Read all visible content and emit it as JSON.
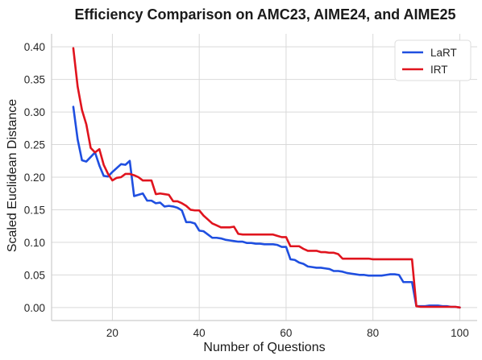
{
  "chart_data": {
    "type": "line",
    "title": "Efficiency Comparison on AMC23, AIME24, and AIME25",
    "xlabel": "Number of Questions",
    "ylabel": "Scaled Euclidean Distance",
    "xlim": [
      6,
      104
    ],
    "ylim": [
      -0.02,
      0.42
    ],
    "x_ticks": [
      20,
      40,
      60,
      80,
      100
    ],
    "y_ticks": [
      0.0,
      0.05,
      0.1,
      0.15,
      0.2,
      0.25,
      0.3,
      0.35,
      0.4
    ],
    "x_tick_labels": [
      "20",
      "40",
      "60",
      "80",
      "100"
    ],
    "y_tick_labels": [
      "0.00",
      "0.05",
      "0.10",
      "0.15",
      "0.20",
      "0.25",
      "0.30",
      "0.35",
      "0.40"
    ],
    "grid": true,
    "legend_position": "top-right",
    "series": [
      {
        "name": "LaRT",
        "color": "#1f4fe0",
        "x": [
          11,
          12,
          13,
          14,
          15,
          16,
          17,
          18,
          19,
          20,
          21,
          22,
          23,
          24,
          25,
          26,
          27,
          28,
          29,
          30,
          31,
          32,
          33,
          34,
          35,
          36,
          37,
          38,
          39,
          40,
          41,
          42,
          43,
          44,
          45,
          46,
          47,
          48,
          49,
          50,
          51,
          52,
          53,
          54,
          55,
          56,
          57,
          58,
          59,
          60,
          61,
          62,
          63,
          64,
          65,
          66,
          67,
          68,
          69,
          70,
          71,
          72,
          73,
          74,
          75,
          76,
          77,
          78,
          79,
          80,
          81,
          82,
          83,
          84,
          85,
          86,
          87,
          88,
          89,
          90,
          91,
          92,
          93,
          94,
          95,
          96,
          97,
          98,
          99,
          100
        ],
        "values": [
          0.308,
          0.258,
          0.226,
          0.224,
          0.231,
          0.238,
          0.218,
          0.202,
          0.201,
          0.208,
          0.214,
          0.22,
          0.219,
          0.225,
          0.171,
          0.173,
          0.175,
          0.164,
          0.164,
          0.16,
          0.161,
          0.155,
          0.156,
          0.155,
          0.153,
          0.149,
          0.131,
          0.131,
          0.129,
          0.118,
          0.117,
          0.112,
          0.107,
          0.107,
          0.106,
          0.104,
          0.103,
          0.102,
          0.101,
          0.101,
          0.099,
          0.099,
          0.098,
          0.098,
          0.097,
          0.097,
          0.097,
          0.096,
          0.093,
          0.093,
          0.074,
          0.073,
          0.069,
          0.067,
          0.063,
          0.062,
          0.061,
          0.061,
          0.06,
          0.059,
          0.056,
          0.056,
          0.055,
          0.053,
          0.052,
          0.051,
          0.05,
          0.05,
          0.049,
          0.049,
          0.049,
          0.049,
          0.05,
          0.051,
          0.051,
          0.05,
          0.039,
          0.039,
          0.039,
          0.002,
          0.002,
          0.002,
          0.003,
          0.003,
          0.003,
          0.002,
          0.002,
          0.001,
          0.001,
          0.0
        ]
      },
      {
        "name": "IRT",
        "color": "#e0141e",
        "x": [
          11,
          12,
          13,
          14,
          15,
          16,
          17,
          18,
          19,
          20,
          21,
          22,
          23,
          24,
          25,
          26,
          27,
          28,
          29,
          30,
          31,
          32,
          33,
          34,
          35,
          36,
          37,
          38,
          39,
          40,
          41,
          42,
          43,
          44,
          45,
          46,
          47,
          48,
          49,
          50,
          51,
          52,
          53,
          54,
          55,
          56,
          57,
          58,
          59,
          60,
          61,
          62,
          63,
          64,
          65,
          66,
          67,
          68,
          69,
          70,
          71,
          72,
          73,
          74,
          75,
          76,
          77,
          78,
          79,
          80,
          81,
          82,
          83,
          84,
          85,
          86,
          87,
          88,
          89,
          90,
          91,
          92,
          93,
          94,
          95,
          96,
          97,
          98,
          99,
          100
        ],
        "values": [
          0.398,
          0.339,
          0.303,
          0.281,
          0.245,
          0.238,
          0.243,
          0.219,
          0.205,
          0.195,
          0.199,
          0.2,
          0.205,
          0.205,
          0.203,
          0.2,
          0.195,
          0.195,
          0.195,
          0.174,
          0.175,
          0.174,
          0.173,
          0.163,
          0.163,
          0.16,
          0.156,
          0.15,
          0.149,
          0.149,
          0.141,
          0.135,
          0.129,
          0.126,
          0.123,
          0.123,
          0.123,
          0.124,
          0.113,
          0.112,
          0.112,
          0.112,
          0.112,
          0.112,
          0.112,
          0.112,
          0.112,
          0.11,
          0.108,
          0.108,
          0.094,
          0.094,
          0.094,
          0.09,
          0.087,
          0.087,
          0.087,
          0.085,
          0.085,
          0.084,
          0.084,
          0.082,
          0.075,
          0.075,
          0.075,
          0.075,
          0.075,
          0.075,
          0.075,
          0.074,
          0.074,
          0.074,
          0.074,
          0.074,
          0.074,
          0.074,
          0.074,
          0.074,
          0.074,
          0.002,
          0.001,
          0.001,
          0.001,
          0.001,
          0.001,
          0.001,
          0.001,
          0.001,
          0.001,
          0.0
        ]
      }
    ]
  }
}
